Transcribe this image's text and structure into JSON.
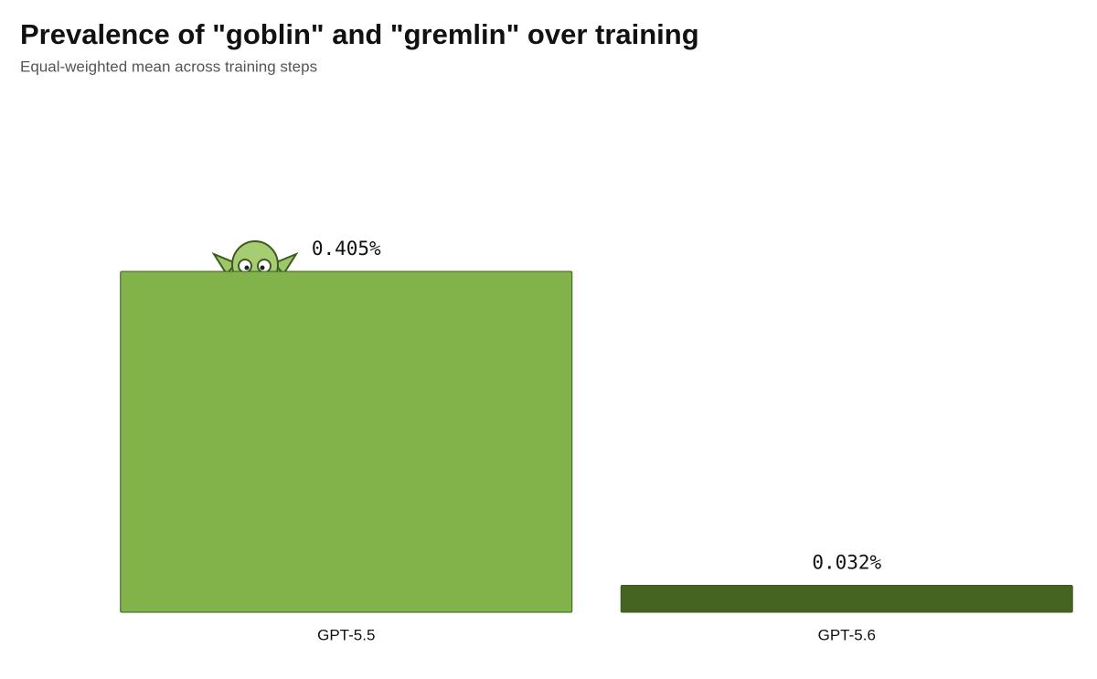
{
  "chart_data": {
    "type": "bar",
    "title": "Prevalence of \"goblin\" and \"gremlin\" over training",
    "subtitle": "Equal-weighted mean across training steps",
    "categories": [
      "GPT-5.5",
      "GPT-5.6"
    ],
    "values": [
      0.405,
      0.032
    ],
    "value_labels": [
      "0.405%",
      "0.032%"
    ],
    "colors": [
      "#82b34b",
      "#456422"
    ]
  }
}
